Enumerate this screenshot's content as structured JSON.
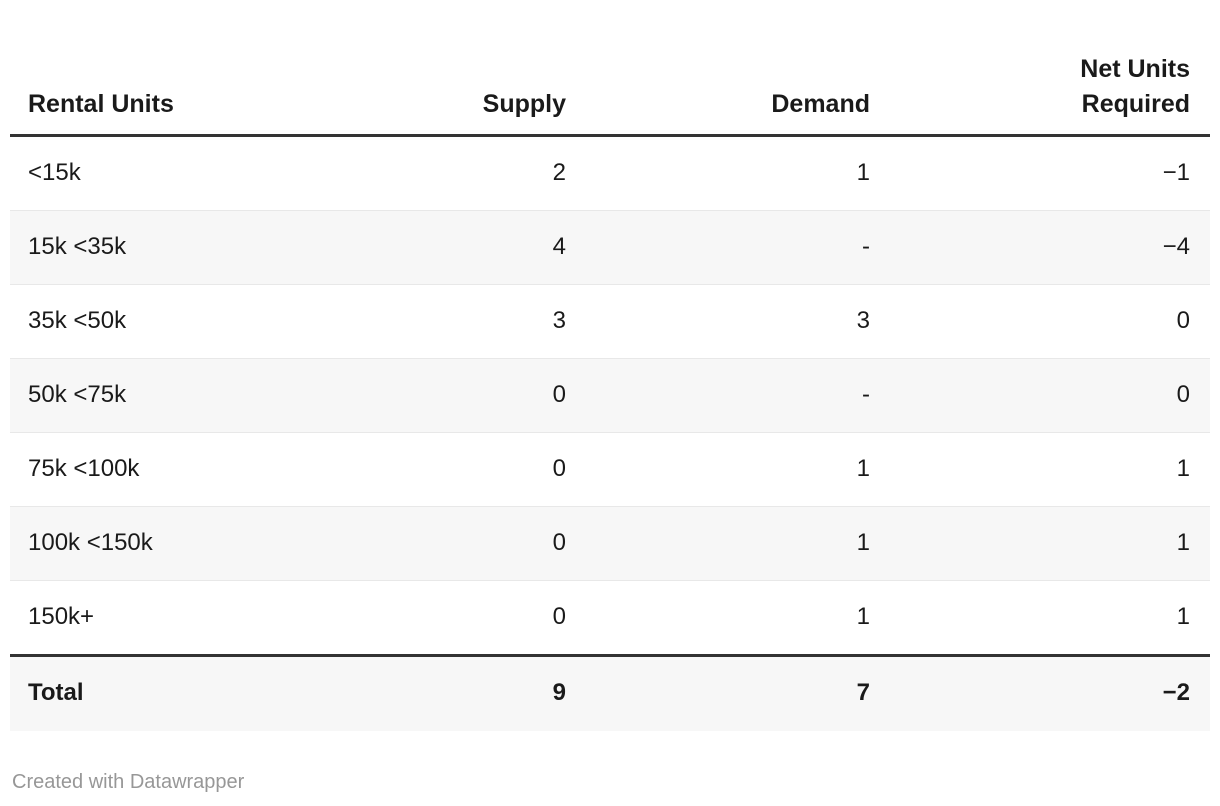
{
  "colors": {
    "text": "#1a1a1a",
    "header_border": "#333333",
    "row_stripe": "#f7f7f7",
    "row_divider": "#e8e8e8",
    "footer_text": "#979797",
    "background": "#ffffff"
  },
  "chart_data": {
    "type": "table",
    "columns": [
      "Rental Units",
      "Supply",
      "Demand",
      "Net Units Required"
    ],
    "rows": [
      {
        "rental_units": "<15k",
        "supply": "2",
        "demand": "1",
        "net_units_required": "−1"
      },
      {
        "rental_units": "15k <35k",
        "supply": "4",
        "demand": "-",
        "net_units_required": "−4"
      },
      {
        "rental_units": "35k <50k",
        "supply": "3",
        "demand": "3",
        "net_units_required": "0"
      },
      {
        "rental_units": "50k <75k",
        "supply": "0",
        "demand": "-",
        "net_units_required": "0"
      },
      {
        "rental_units": "75k <100k",
        "supply": "0",
        "demand": "1",
        "net_units_required": "1"
      },
      {
        "rental_units": "100k <150k",
        "supply": "0",
        "demand": "1",
        "net_units_required": "1"
      },
      {
        "rental_units": "150k+",
        "supply": "0",
        "demand": "1",
        "net_units_required": "1"
      }
    ],
    "total_row": {
      "label": "Total",
      "supply": "9",
      "demand": "7",
      "net_units_required": "−2"
    },
    "layout": {
      "striped_rows": true,
      "header_rule": true,
      "total_rule": true
    }
  },
  "footer": {
    "credit": "Created with Datawrapper"
  }
}
